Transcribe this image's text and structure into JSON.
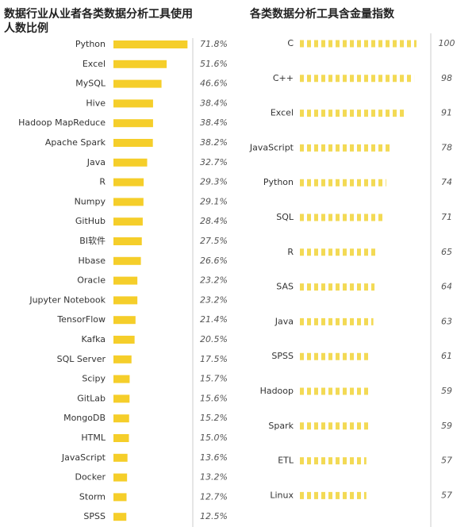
{
  "chart_data": [
    {
      "type": "bar",
      "title": "数据行业从业者各类数据分析工具使用人数比例",
      "color": "#f5ce2a",
      "categories": [
        "Python",
        "Excel",
        "MySQL",
        "Hive",
        "Hadoop MapReduce",
        "Apache Spark",
        "Java",
        "R",
        "Numpy",
        "GitHub",
        "BI软件",
        "Hbase",
        "Oracle",
        "Jupyter Notebook",
        "TensorFlow",
        "Kafka",
        "SQL Server",
        "Scipy",
        "GitLab",
        "MongoDB",
        "HTML",
        "JavaScript",
        "Docker",
        "Storm",
        "SPSS"
      ],
      "values": [
        71.8,
        51.6,
        46.6,
        38.4,
        38.4,
        38.2,
        32.7,
        29.3,
        29.1,
        28.4,
        27.5,
        26.6,
        23.2,
        23.2,
        21.4,
        20.5,
        17.5,
        15.7,
        15.6,
        15.2,
        15.0,
        13.6,
        13.2,
        12.7,
        12.5
      ],
      "value_labels": [
        "71.8%",
        "51.6%",
        "46.6%",
        "38.4%",
        "38.4%",
        "38.2%",
        "32.7%",
        "29.3%",
        "29.1%",
        "28.4%",
        "27.5%",
        "26.6%",
        "23.2%",
        "23.2%",
        "21.4%",
        "20.5%",
        "17.5%",
        "15.7%",
        "15.6%",
        "15.2%",
        "15.0%",
        "13.6%",
        "13.2%",
        "12.7%",
        "12.5%"
      ]
    },
    {
      "type": "dotbar",
      "title": "各类数据分析工具含金量指数",
      "color": "#f3da55",
      "categories": [
        "C",
        "C++",
        "Excel",
        "JavaScript",
        "Python",
        "SQL",
        "R",
        "SAS",
        "Java",
        "SPSS",
        "Hadoop",
        "Spark",
        "ETL",
        "Linux"
      ],
      "values": [
        100,
        98,
        91,
        78,
        74,
        71,
        65,
        64,
        63,
        61,
        59,
        59,
        57,
        57
      ]
    }
  ]
}
